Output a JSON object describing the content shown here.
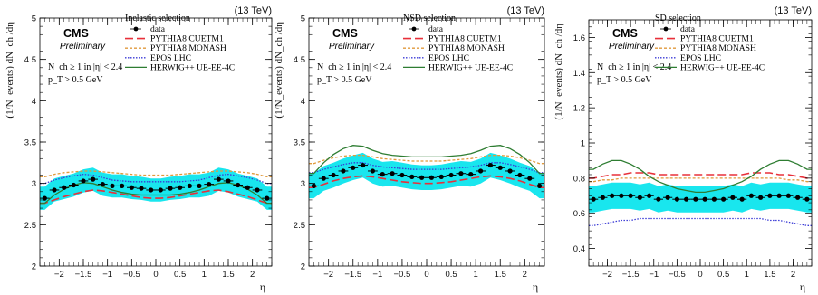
{
  "chart_data": [
    {
      "type": "line",
      "energy_label": "(13 TeV)",
      "experiment": "CMS",
      "status": "Preliminary",
      "selection": "Inelastic selection",
      "ylabel": "(1/N_events) dN_ch /dη",
      "xlabel": "η",
      "xlim": [
        -2.4,
        2.4
      ],
      "ylim": [
        2,
        5
      ],
      "x_ticks": [
        -2,
        -1.5,
        -1,
        -0.5,
        0,
        0.5,
        1,
        1.5,
        2
      ],
      "x_tick_labels": [
        "−2",
        "−1.5",
        "−1",
        "−0.5",
        "0",
        "0.5",
        "1",
        "1.5",
        "2"
      ],
      "y_ticks": [
        2,
        2.5,
        3,
        3.5,
        4,
        4.5,
        5
      ],
      "y_tick_labels": [
        "2",
        "2.5",
        "3",
        "3.5",
        "4",
        "4.5",
        "5"
      ],
      "cut_lines": [
        "N_ch ≥ 1 in |η| < 2.4",
        "p_T > 0.5 GeV"
      ],
      "legend_position": "top-left",
      "x": [
        -2.3,
        -2.1,
        -1.9,
        -1.7,
        -1.5,
        -1.3,
        -1.1,
        -0.9,
        -0.7,
        -0.5,
        -0.3,
        -0.1,
        0.1,
        0.3,
        0.5,
        0.7,
        0.9,
        1.1,
        1.3,
        1.5,
        1.7,
        1.9,
        2.1,
        2.3
      ],
      "band_half_width": 0.14,
      "series": [
        {
          "name": "data",
          "style": "points",
          "color": "#000000",
          "values": [
            2.82,
            2.92,
            2.95,
            2.98,
            3.03,
            3.05,
            2.99,
            2.97,
            2.97,
            2.95,
            2.94,
            2.92,
            2.92,
            2.94,
            2.95,
            2.97,
            2.97,
            2.99,
            3.05,
            3.03,
            2.98,
            2.95,
            2.92,
            2.82
          ]
        },
        {
          "name": "PYTHIA8 CUETM1",
          "style": "dashed",
          "color": "#e8303a",
          "values": [
            2.76,
            2.8,
            2.84,
            2.87,
            2.9,
            2.92,
            2.91,
            2.89,
            2.87,
            2.85,
            2.83,
            2.82,
            2.82,
            2.83,
            2.85,
            2.87,
            2.89,
            2.91,
            2.92,
            2.9,
            2.87,
            2.84,
            2.8,
            2.76
          ]
        },
        {
          "name": "PYTHIA8 MONASH",
          "style": "dotted",
          "color": "#e09a3c",
          "values": [
            3.08,
            3.11,
            3.13,
            3.14,
            3.15,
            3.15,
            3.14,
            3.13,
            3.12,
            3.11,
            3.1,
            3.1,
            3.1,
            3.1,
            3.11,
            3.12,
            3.13,
            3.14,
            3.15,
            3.15,
            3.14,
            3.13,
            3.11,
            3.08
          ]
        },
        {
          "name": "EPOS LHC",
          "style": "fine-dotted",
          "color": "#3b3bd6",
          "values": [
            3.0,
            3.04,
            3.07,
            3.09,
            3.11,
            3.1,
            3.07,
            3.04,
            3.03,
            3.02,
            3.02,
            3.02,
            3.02,
            3.02,
            3.02,
            3.03,
            3.04,
            3.07,
            3.1,
            3.11,
            3.09,
            3.07,
            3.04,
            3.0
          ]
        },
        {
          "name": "HERWIG++ UE-EE-4C",
          "style": "solid",
          "color": "#2e7d32",
          "values": [
            2.76,
            2.86,
            2.93,
            2.98,
            3.01,
            3.0,
            2.96,
            2.92,
            2.89,
            2.87,
            2.86,
            2.86,
            2.86,
            2.86,
            2.87,
            2.89,
            2.92,
            2.96,
            3.0,
            3.01,
            2.98,
            2.93,
            2.86,
            2.76
          ]
        }
      ]
    },
    {
      "type": "line",
      "energy_label": "(13 TeV)",
      "experiment": "CMS",
      "status": "Preliminary",
      "selection": "NSD selection",
      "ylabel": "(1/N_events) dN_ch /dη",
      "xlabel": "η",
      "xlim": [
        -2.4,
        2.4
      ],
      "ylim": [
        2,
        5
      ],
      "x_ticks": [
        -2,
        -1.5,
        -1,
        -0.5,
        0,
        0.5,
        1,
        1.5,
        2
      ],
      "x_tick_labels": [
        "−2",
        "−1.5",
        "−1",
        "−0.5",
        "0",
        "0.5",
        "1",
        "1.5",
        "2"
      ],
      "y_ticks": [
        2,
        2.5,
        3,
        3.5,
        4,
        4.5,
        5
      ],
      "y_tick_labels": [
        "2",
        "2.5",
        "3",
        "3.5",
        "4",
        "4.5",
        "5"
      ],
      "cut_lines": [
        "N_ch ≥ 1 in |η| < 2.4",
        "p_T > 0.5 GeV"
      ],
      "legend_position": "top-right",
      "x": [
        -2.3,
        -2.1,
        -1.9,
        -1.7,
        -1.5,
        -1.3,
        -1.1,
        -0.9,
        -0.7,
        -0.5,
        -0.3,
        -0.1,
        0.1,
        0.3,
        0.5,
        0.7,
        0.9,
        1.1,
        1.3,
        1.5,
        1.7,
        1.9,
        2.1,
        2.3
      ],
      "band_half_width": 0.15,
      "series": [
        {
          "name": "data",
          "style": "points",
          "color": "#000000",
          "values": [
            2.97,
            3.06,
            3.1,
            3.15,
            3.19,
            3.22,
            3.15,
            3.11,
            3.12,
            3.1,
            3.08,
            3.07,
            3.07,
            3.08,
            3.1,
            3.12,
            3.11,
            3.15,
            3.22,
            3.19,
            3.15,
            3.1,
            3.06,
            2.97
          ]
        },
        {
          "name": "PYTHIA8 CUETM1",
          "style": "dashed",
          "color": "#e8303a",
          "values": [
            2.95,
            2.99,
            3.03,
            3.06,
            3.08,
            3.09,
            3.08,
            3.06,
            3.04,
            3.02,
            3.01,
            3.0,
            3.0,
            3.01,
            3.02,
            3.04,
            3.06,
            3.08,
            3.09,
            3.08,
            3.06,
            3.03,
            2.99,
            2.95
          ]
        },
        {
          "name": "PYTHIA8 MONASH",
          "style": "dotted",
          "color": "#e09a3c",
          "values": [
            3.24,
            3.28,
            3.31,
            3.33,
            3.34,
            3.34,
            3.32,
            3.3,
            3.29,
            3.28,
            3.27,
            3.27,
            3.27,
            3.27,
            3.28,
            3.29,
            3.3,
            3.32,
            3.34,
            3.34,
            3.33,
            3.31,
            3.28,
            3.24
          ]
        },
        {
          "name": "EPOS LHC",
          "style": "fine-dotted",
          "color": "#3b3bd6",
          "values": [
            3.13,
            3.17,
            3.2,
            3.23,
            3.25,
            3.25,
            3.22,
            3.2,
            3.19,
            3.18,
            3.17,
            3.17,
            3.17,
            3.17,
            3.18,
            3.19,
            3.2,
            3.22,
            3.25,
            3.25,
            3.23,
            3.2,
            3.17,
            3.13
          ]
        },
        {
          "name": "HERWIG++ UE-EE-4C",
          "style": "solid",
          "color": "#2e7d32",
          "values": [
            3.12,
            3.25,
            3.35,
            3.42,
            3.46,
            3.45,
            3.4,
            3.36,
            3.34,
            3.33,
            3.32,
            3.32,
            3.32,
            3.32,
            3.33,
            3.34,
            3.36,
            3.4,
            3.45,
            3.46,
            3.42,
            3.35,
            3.25,
            3.12
          ]
        }
      ]
    },
    {
      "type": "line",
      "energy_label": "(13 TeV)",
      "experiment": "CMS",
      "status": "Preliminary",
      "selection": "SD selection",
      "ylabel": "(1/N_events) dN_ch /dη",
      "xlabel": "η",
      "xlim": [
        -2.4,
        2.4
      ],
      "ylim": [
        0.3,
        1.7
      ],
      "x_ticks": [
        -2,
        -1.5,
        -1,
        -0.5,
        0,
        0.5,
        1,
        1.5,
        2
      ],
      "x_tick_labels": [
        "−2",
        "−1.5",
        "−1",
        "−0.5",
        "0",
        "0.5",
        "1",
        "1.5",
        "2"
      ],
      "y_ticks": [
        0.4,
        0.6,
        0.8,
        1,
        1.2,
        1.4,
        1.6
      ],
      "y_tick_labels": [
        "0.4",
        "0.6",
        "0.8",
        "1",
        "1.2",
        "1.4",
        "1.6"
      ],
      "cut_lines": [
        "N_ch ≥ 1 in |η| < 2.4",
        "p_T > 0.5 GeV"
      ],
      "legend_position": "top-right",
      "x": [
        -2.3,
        -2.1,
        -1.9,
        -1.7,
        -1.5,
        -1.3,
        -1.1,
        -0.9,
        -0.7,
        -0.5,
        -0.3,
        -0.1,
        0.1,
        0.3,
        0.5,
        0.7,
        0.9,
        1.1,
        1.3,
        1.5,
        1.7,
        1.9,
        2.1,
        2.3
      ],
      "band_half_width": 0.075,
      "series": [
        {
          "name": "data",
          "style": "points",
          "color": "#000000",
          "values": [
            0.68,
            0.69,
            0.7,
            0.7,
            0.7,
            0.69,
            0.7,
            0.68,
            0.69,
            0.68,
            0.68,
            0.68,
            0.68,
            0.68,
            0.68,
            0.69,
            0.68,
            0.7,
            0.69,
            0.7,
            0.7,
            0.7,
            0.69,
            0.68
          ]
        },
        {
          "name": "PYTHIA8 CUETM1",
          "style": "dashed",
          "color": "#e8303a",
          "values": [
            0.8,
            0.81,
            0.82,
            0.82,
            0.83,
            0.83,
            0.83,
            0.82,
            0.82,
            0.82,
            0.82,
            0.82,
            0.82,
            0.82,
            0.82,
            0.82,
            0.82,
            0.83,
            0.83,
            0.83,
            0.82,
            0.82,
            0.81,
            0.8
          ]
        },
        {
          "name": "PYTHIA8 MONASH",
          "style": "dotted",
          "color": "#e09a3c",
          "values": [
            0.78,
            0.79,
            0.79,
            0.8,
            0.8,
            0.8,
            0.8,
            0.8,
            0.8,
            0.8,
            0.8,
            0.8,
            0.8,
            0.8,
            0.8,
            0.8,
            0.8,
            0.8,
            0.8,
            0.8,
            0.8,
            0.79,
            0.79,
            0.78
          ]
        },
        {
          "name": "EPOS LHC",
          "style": "fine-dotted",
          "color": "#3b3bd6",
          "values": [
            0.53,
            0.54,
            0.55,
            0.56,
            0.56,
            0.57,
            0.57,
            0.57,
            0.57,
            0.57,
            0.57,
            0.57,
            0.57,
            0.57,
            0.57,
            0.57,
            0.57,
            0.57,
            0.57,
            0.56,
            0.56,
            0.55,
            0.54,
            0.53
          ]
        },
        {
          "name": "HERWIG++ UE-EE-4C",
          "style": "solid",
          "color": "#2e7d32",
          "values": [
            0.85,
            0.88,
            0.9,
            0.9,
            0.88,
            0.85,
            0.81,
            0.78,
            0.76,
            0.74,
            0.73,
            0.72,
            0.72,
            0.73,
            0.74,
            0.76,
            0.78,
            0.81,
            0.85,
            0.88,
            0.9,
            0.9,
            0.88,
            0.85
          ]
        }
      ]
    }
  ]
}
